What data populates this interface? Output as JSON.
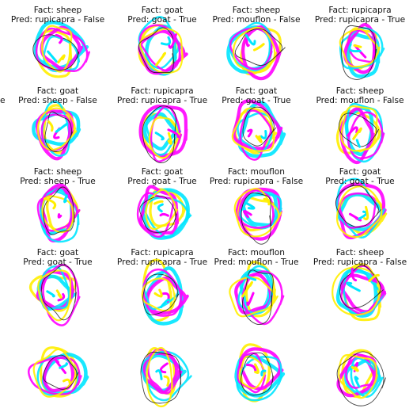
{
  "cells": [
    {
      "fact": "Fact: sheep",
      "pred": "Pred: rupicapra - False"
    },
    {
      "fact": "Fact: goat",
      "pred": "Pred: goat - True"
    },
    {
      "fact": "Fact: sheep",
      "pred": "Pred: mouflon - False"
    },
    {
      "fact": "Fact: rupicapra",
      "pred": "Pred: rupicapra - True"
    },
    {
      "fact": "Fact: goat",
      "pred": "Pred: sheep - False"
    },
    {
      "fact": "Fact: rupicapra",
      "pred": "Pred: rupicapra - True"
    },
    {
      "fact": "Fact: goat",
      "pred": "Pred: goat - True"
    },
    {
      "fact": "Fact: sheep",
      "pred": "Pred: mouflon - False"
    },
    {
      "fact": "Fact: sheep",
      "pred": "Pred: sheep - True"
    },
    {
      "fact": "Fact: goat",
      "pred": "Pred: goat - True"
    },
    {
      "fact": "Fact: mouflon",
      "pred": "Pred: rupicapra - False"
    },
    {
      "fact": "Fact: goat",
      "pred": "Pred: goat - True"
    },
    {
      "fact": "Fact: goat",
      "pred": "Pred: goat - True"
    },
    {
      "fact": "Fact: rupicapra",
      "pred": "Pred: rupicapra - True"
    },
    {
      "fact": "Fact: mouflon",
      "pred": "Pred: mouflon - True"
    },
    {
      "fact": "Fact: sheep",
      "pred": "Pred: rupicapra - False"
    },
    {
      "fact": "",
      "pred": ""
    },
    {
      "fact": "",
      "pred": ""
    },
    {
      "fact": "",
      "pred": ""
    },
    {
      "fact": "",
      "pred": ""
    }
  ],
  "left_edge_fragment": "e",
  "colors": {
    "magenta": "#ff00ff",
    "cyan": "#00e5ff",
    "yellow": "#ffee00",
    "black": "#111111",
    "background": "#ffffff"
  }
}
